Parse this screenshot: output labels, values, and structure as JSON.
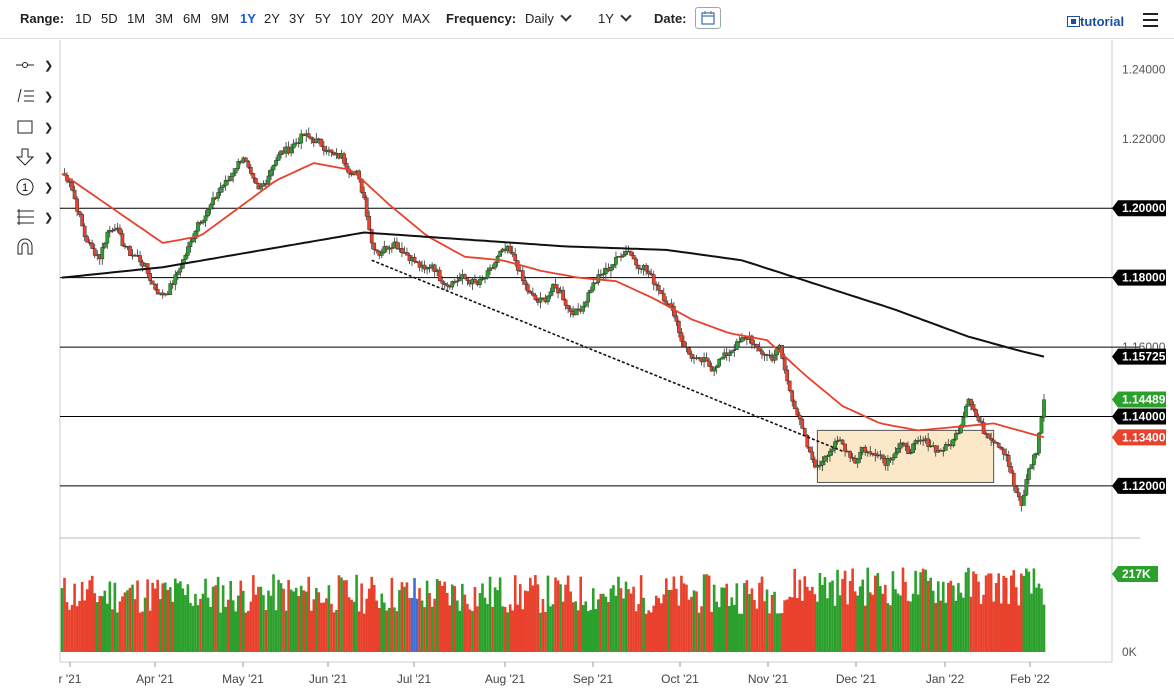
{
  "toolbar": {
    "range_label": "Range:",
    "ranges": [
      "1D",
      "5D",
      "1M",
      "3M",
      "6M",
      "9M",
      "1Y",
      "2Y",
      "3Y",
      "5Y",
      "10Y",
      "20Y",
      "MAX"
    ],
    "active_range": "1Y",
    "frequency_label": "Frequency:",
    "frequency_value": "Daily",
    "period_value": "1Y",
    "date_label": "Date:",
    "tutorial_label": "tutorial"
  },
  "left_tools": [
    "crosshair-tool-icon",
    "line-tool-icon",
    "rectangle-tool-icon",
    "arrow-tool-icon",
    "counter-tool-icon",
    "fibonacci-tool-icon",
    "magnet-tool-icon"
  ],
  "chart_data": {
    "type": "candlestick",
    "instrument_hint": "EUR/USD daily",
    "x_labels": [
      "r '21",
      "Apr '21",
      "May '21",
      "Jun '21",
      "Jul '21",
      "Aug '21",
      "Sep '21",
      "Oct '21",
      "Nov '21",
      "Dec '21",
      "Jan '22",
      "Feb '22"
    ],
    "y_ticks": [
      "1.24000",
      "1.22000",
      "1.20000",
      "1.18000",
      "1.16000",
      "1.14000",
      "1.12000"
    ],
    "ylim": [
      1.105,
      1.245
    ],
    "horizontal_lines": [
      1.2,
      1.18,
      1.16,
      1.14,
      1.12
    ],
    "price_labels": [
      {
        "value": 1.2,
        "text": "1.20000",
        "color": "#000000"
      },
      {
        "value": 1.18,
        "text": "1.18000",
        "color": "#000000"
      },
      {
        "value": 1.15725,
        "text": "1.15725",
        "color": "#000000"
      },
      {
        "value": 1.14489,
        "text": "1.14489",
        "color": "#2ca02c"
      },
      {
        "value": 1.14,
        "text": "1.14000",
        "color": "#000000"
      },
      {
        "value": 1.134,
        "text": "1.13400",
        "color": "#e8412c"
      },
      {
        "value": 1.12,
        "text": "1.12000",
        "color": "#000000"
      }
    ],
    "close_path": [
      [
        0,
        1.21
      ],
      [
        3,
        1.208
      ],
      [
        6,
        1.2
      ],
      [
        9,
        1.192
      ],
      [
        12,
        1.188
      ],
      [
        15,
        1.186
      ],
      [
        18,
        1.193
      ],
      [
        21,
        1.195
      ],
      [
        24,
        1.19
      ],
      [
        27,
        1.187
      ],
      [
        30,
        1.186
      ],
      [
        33,
        1.183
      ],
      [
        36,
        1.178
      ],
      [
        39,
        1.175
      ],
      [
        42,
        1.176
      ],
      [
        45,
        1.18
      ],
      [
        48,
        1.185
      ],
      [
        51,
        1.19
      ],
      [
        54,
        1.196
      ],
      [
        57,
        1.198
      ],
      [
        60,
        1.202
      ],
      [
        63,
        1.206
      ],
      [
        66,
        1.208
      ],
      [
        69,
        1.212
      ],
      [
        72,
        1.215
      ],
      [
        75,
        1.209
      ],
      [
        78,
        1.205
      ],
      [
        81,
        1.208
      ],
      [
        84,
        1.213
      ],
      [
        87,
        1.216
      ],
      [
        90,
        1.217
      ],
      [
        93,
        1.219
      ],
      [
        96,
        1.221
      ],
      [
        99,
        1.22
      ],
      [
        102,
        1.219
      ],
      [
        105,
        1.217
      ],
      [
        108,
        1.215
      ],
      [
        111,
        1.215
      ],
      [
        114,
        1.211
      ],
      [
        117,
        1.21
      ],
      [
        120,
        1.203
      ],
      [
        123,
        1.19
      ],
      [
        126,
        1.187
      ],
      [
        129,
        1.189
      ],
      [
        132,
        1.19
      ],
      [
        135,
        1.188
      ],
      [
        138,
        1.186
      ],
      [
        141,
        1.184
      ],
      [
        144,
        1.182
      ],
      [
        147,
        1.184
      ],
      [
        150,
        1.18
      ],
      [
        153,
        1.178
      ],
      [
        156,
        1.179
      ],
      [
        159,
        1.18
      ],
      [
        162,
        1.179
      ],
      [
        165,
        1.178
      ],
      [
        168,
        1.18
      ],
      [
        171,
        1.183
      ],
      [
        174,
        1.187
      ],
      [
        177,
        1.188
      ],
      [
        180,
        1.185
      ],
      [
        183,
        1.179
      ],
      [
        186,
        1.175
      ],
      [
        189,
        1.173
      ],
      [
        192,
        1.174
      ],
      [
        195,
        1.177
      ],
      [
        198,
        1.176
      ],
      [
        201,
        1.171
      ],
      [
        204,
        1.17
      ],
      [
        207,
        1.172
      ],
      [
        210,
        1.177
      ],
      [
        213,
        1.18
      ],
      [
        216,
        1.182
      ],
      [
        219,
        1.184
      ],
      [
        222,
        1.187
      ],
      [
        225,
        1.188
      ],
      [
        228,
        1.184
      ],
      [
        231,
        1.183
      ],
      [
        234,
        1.18
      ],
      [
        237,
        1.177
      ],
      [
        240,
        1.173
      ],
      [
        243,
        1.17
      ],
      [
        246,
        1.162
      ],
      [
        249,
        1.158
      ],
      [
        252,
        1.156
      ],
      [
        255,
        1.156
      ],
      [
        258,
        1.154
      ],
      [
        261,
        1.156
      ],
      [
        264,
        1.158
      ],
      [
        267,
        1.16
      ],
      [
        270,
        1.162
      ],
      [
        273,
        1.163
      ],
      [
        276,
        1.159
      ],
      [
        279,
        1.158
      ],
      [
        282,
        1.157
      ],
      [
        285,
        1.16
      ],
      [
        288,
        1.15
      ],
      [
        291,
        1.143
      ],
      [
        294,
        1.136
      ],
      [
        297,
        1.129
      ],
      [
        300,
        1.125
      ],
      [
        303,
        1.129
      ],
      [
        306,
        1.131
      ],
      [
        309,
        1.133
      ],
      [
        312,
        1.13
      ],
      [
        315,
        1.127
      ],
      [
        318,
        1.131
      ],
      [
        321,
        1.129
      ],
      [
        324,
        1.13
      ],
      [
        327,
        1.127
      ],
      [
        330,
        1.129
      ],
      [
        333,
        1.132
      ],
      [
        336,
        1.13
      ],
      [
        339,
        1.132
      ],
      [
        342,
        1.133
      ],
      [
        345,
        1.132
      ],
      [
        348,
        1.13
      ],
      [
        351,
        1.131
      ],
      [
        354,
        1.133
      ],
      [
        357,
        1.138
      ],
      [
        360,
        1.146
      ],
      [
        363,
        1.14
      ],
      [
        366,
        1.136
      ],
      [
        369,
        1.134
      ],
      [
        372,
        1.132
      ],
      [
        375,
        1.129
      ],
      [
        378,
        1.12
      ],
      [
        381,
        1.114
      ],
      [
        384,
        1.125
      ],
      [
        387,
        1.13
      ],
      [
        390,
        1.1449
      ]
    ],
    "ma50": [
      [
        0,
        1.21
      ],
      [
        20,
        1.2
      ],
      [
        40,
        1.19
      ],
      [
        55,
        1.192
      ],
      [
        70,
        1.2
      ],
      [
        85,
        1.208
      ],
      [
        100,
        1.213
      ],
      [
        115,
        1.211
      ],
      [
        130,
        1.201
      ],
      [
        145,
        1.192
      ],
      [
        160,
        1.186
      ],
      [
        175,
        1.185
      ],
      [
        190,
        1.182
      ],
      [
        205,
        1.18
      ],
      [
        220,
        1.179
      ],
      [
        235,
        1.174
      ],
      [
        250,
        1.168
      ],
      [
        265,
        1.164
      ],
      [
        280,
        1.162
      ],
      [
        295,
        1.152
      ],
      [
        310,
        1.143
      ],
      [
        325,
        1.138
      ],
      [
        340,
        1.136
      ],
      [
        355,
        1.137
      ],
      [
        370,
        1.138
      ],
      [
        380,
        1.136
      ],
      [
        390,
        1.134
      ]
    ],
    "ma200": [
      [
        0,
        1.18
      ],
      [
        40,
        1.183
      ],
      [
        80,
        1.188
      ],
      [
        120,
        1.193
      ],
      [
        160,
        1.191
      ],
      [
        200,
        1.189
      ],
      [
        240,
        1.188
      ],
      [
        270,
        1.185
      ],
      [
        300,
        1.178
      ],
      [
        330,
        1.171
      ],
      [
        360,
        1.163
      ],
      [
        380,
        1.159
      ],
      [
        390,
        1.15725
      ]
    ],
    "trendline": [
      [
        123,
        1.185
      ],
      [
        310,
        1.13
      ]
    ],
    "range_box": [
      [
        300,
        1.136
      ],
      [
        370,
        1.121
      ]
    ],
    "volume_last_label": "217K",
    "volume_zero_label": "0K",
    "colors": {
      "up": "#2ca02c",
      "down": "#e8412c",
      "ma50": "#e8412c",
      "ma200": "#111111",
      "grid": "#000000",
      "box_fill": "#fbe8c8",
      "box_stroke": "#555555"
    }
  }
}
